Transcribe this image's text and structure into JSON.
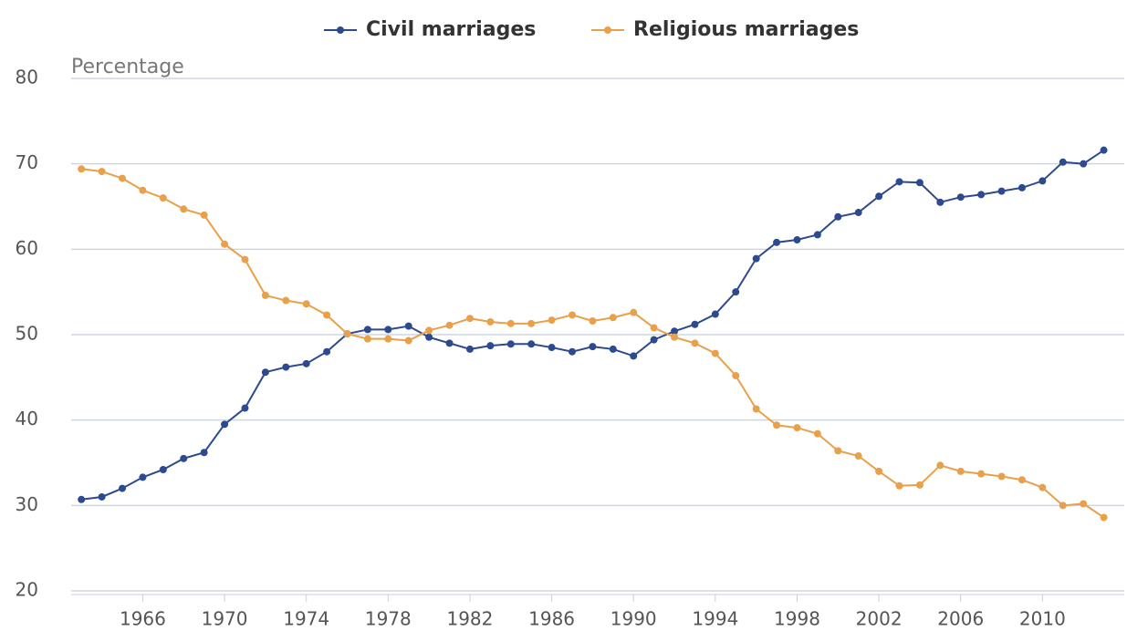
{
  "chart_data": {
    "type": "line",
    "y_label": "Percentage",
    "x": [
      1963,
      1964,
      1965,
      1966,
      1967,
      1968,
      1969,
      1970,
      1971,
      1972,
      1973,
      1974,
      1975,
      1976,
      1977,
      1978,
      1979,
      1980,
      1981,
      1982,
      1983,
      1984,
      1985,
      1986,
      1987,
      1988,
      1989,
      1990,
      1991,
      1992,
      1993,
      1994,
      1995,
      1996,
      1997,
      1998,
      1999,
      2000,
      2001,
      2002,
      2003,
      2004,
      2005,
      2006,
      2007,
      2008,
      2009,
      2010,
      2011,
      2012,
      2013
    ],
    "series": [
      {
        "name": "Civil marriages",
        "color": "#2e4a8f",
        "values": [
          30.7,
          31.0,
          32.0,
          33.3,
          34.2,
          35.5,
          36.2,
          39.5,
          41.4,
          45.6,
          46.2,
          46.6,
          48.0,
          50.1,
          50.6,
          50.6,
          51.0,
          49.7,
          49.0,
          48.3,
          48.7,
          48.9,
          48.9,
          48.5,
          48.0,
          48.6,
          48.3,
          47.5,
          49.4,
          50.4,
          51.2,
          52.4,
          55.0,
          58.9,
          60.8,
          61.1,
          61.7,
          63.8,
          64.3,
          66.2,
          67.9,
          67.8,
          65.5,
          66.1,
          66.4,
          66.8,
          67.2,
          68.0,
          70.2,
          70.0,
          71.6
        ]
      },
      {
        "name": "Religious marriages",
        "color": "#e8a04a",
        "values": [
          69.4,
          69.1,
          68.3,
          66.9,
          66.0,
          64.7,
          64.0,
          60.6,
          58.8,
          54.6,
          54.0,
          53.6,
          52.3,
          50.1,
          49.5,
          49.5,
          49.3,
          50.5,
          51.1,
          51.9,
          51.5,
          51.3,
          51.3,
          51.7,
          52.3,
          51.6,
          52.0,
          52.6,
          50.8,
          49.7,
          49.0,
          47.8,
          45.2,
          41.3,
          39.4,
          39.1,
          38.4,
          36.4,
          35.8,
          34.0,
          32.3,
          32.4,
          34.7,
          34.0,
          33.7,
          33.4,
          33.0,
          32.1,
          30.0,
          30.2,
          28.6
        ]
      }
    ],
    "xlim": [
      1962.5,
      2014
    ],
    "xticks": [
      1966,
      1970,
      1974,
      1978,
      1982,
      1986,
      1990,
      1994,
      1998,
      2002,
      2006,
      2010
    ],
    "ylim": [
      20,
      80
    ],
    "yticks": [
      20,
      30,
      40,
      50,
      60,
      70,
      80
    ],
    "grid": true,
    "legend": "top"
  }
}
